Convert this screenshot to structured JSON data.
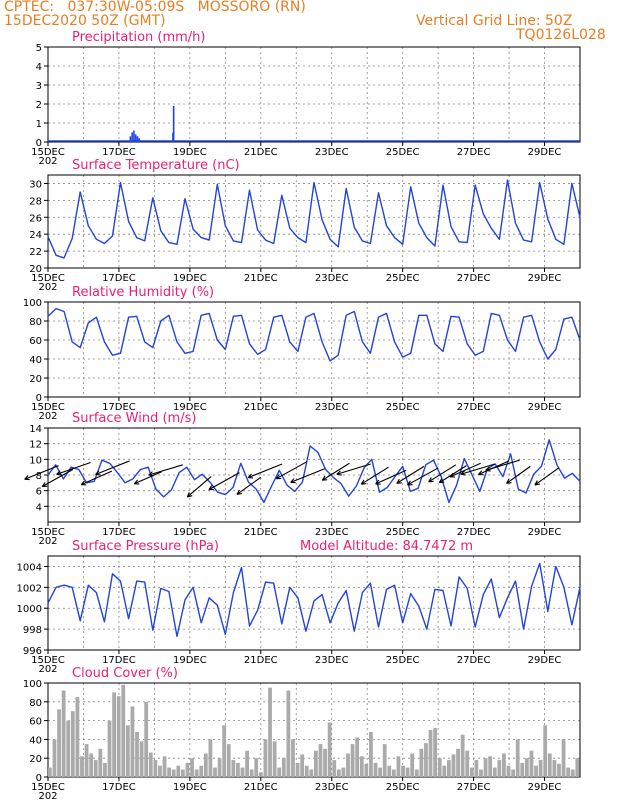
{
  "header": {
    "left_line1": "CPTEC:   037:30W-05:09S   MOSSORO (RN)",
    "left_line2": "15DEC2020 50Z (GMT)",
    "right_line1": "Vertical Grid Line: 50Z",
    "right_line2": "TQ0126L028"
  },
  "x_labels": [
    "15DEC",
    "17DEC",
    "19DEC",
    "21DEC",
    "23DEC",
    "25DEC",
    "27DEC",
    "29DEC"
  ],
  "x_year_stub": "202",
  "colors": {
    "line": "#2244dd",
    "title": "#e8207a",
    "header": "#e67e22",
    "cloud": "#aaaaaa",
    "wind": "#000000"
  },
  "chart_data": [
    {
      "type": "bar",
      "title": "Precipitation (mm/h)",
      "ylim": [
        0,
        5
      ],
      "yticks": [
        "0",
        "1",
        "2",
        "3",
        "4",
        "5"
      ],
      "x_days": [
        2.3,
        2.35,
        2.4,
        2.45,
        2.5,
        2.55,
        3.5,
        3.52
      ],
      "values": [
        0.3,
        0.5,
        0.6,
        0.4,
        0.3,
        0.2,
        0.5,
        1.9
      ]
    },
    {
      "type": "line",
      "title": "Surface Temperature (nC)",
      "ylim": [
        20,
        31
      ],
      "yticks": [
        "20",
        "22",
        "24",
        "26",
        "28",
        "30"
      ],
      "values": [
        23.7,
        21.5,
        21.2,
        23.5,
        29.0,
        25.0,
        23.4,
        22.9,
        23.8,
        30.1,
        25.5,
        23.6,
        23.2,
        28.3,
        24.4,
        23.0,
        22.8,
        28.2,
        24.6,
        23.6,
        23.3,
        29.9,
        25.0,
        23.2,
        23.0,
        29.2,
        24.5,
        23.3,
        22.9,
        28.6,
        24.7,
        23.6,
        23.0,
        30.1,
        25.7,
        23.4,
        22.5,
        29.4,
        24.8,
        23.2,
        22.9,
        28.9,
        25.0,
        23.6,
        22.8,
        29.6,
        25.3,
        23.6,
        22.6,
        29.8,
        24.9,
        23.1,
        23.0,
        29.8,
        26.4,
        24.7,
        23.4,
        30.4,
        25.3,
        23.3,
        23.1,
        30.1,
        25.8,
        23.4,
        22.8,
        30.0,
        26.0
      ]
    },
    {
      "type": "line",
      "title": "Relative Humidity (%)",
      "ylim": [
        0,
        100
      ],
      "yticks": [
        "0",
        "20",
        "40",
        "60",
        "80",
        "100"
      ],
      "values": [
        85,
        93,
        90,
        58,
        52,
        78,
        84,
        58,
        44,
        46,
        84,
        85,
        58,
        52,
        80,
        86,
        58,
        46,
        48,
        86,
        88,
        60,
        50,
        85,
        86,
        56,
        45,
        50,
        84,
        86,
        58,
        48,
        84,
        88,
        58,
        38,
        44,
        86,
        90,
        58,
        46,
        84,
        88,
        58,
        42,
        46,
        86,
        86,
        56,
        48,
        85,
        84,
        56,
        44,
        48,
        88,
        86,
        60,
        48,
        84,
        86,
        58,
        40,
        50,
        82,
        84,
        60
      ]
    },
    {
      "type": "line",
      "title": "Surface Wind (m/s)",
      "ylim": [
        2,
        14
      ],
      "yticks": [
        "4",
        "6",
        "8",
        "10",
        "12",
        "14"
      ],
      "values": [
        8.0,
        9.3,
        7.5,
        9.0,
        8.7,
        7.0,
        7.2,
        9.9,
        9.5,
        8.3,
        7.0,
        7.5,
        8.7,
        9.0,
        6.2,
        5.2,
        6.1,
        8.3,
        9.0,
        7.4,
        8.1,
        7.1,
        5.8,
        5.5,
        6.4,
        9.5,
        7.1,
        6.2,
        4.5,
        6.6,
        8.6,
        6.7,
        5.9,
        7.1,
        11.7,
        10.9,
        8.7,
        7.7,
        6.9,
        5.3,
        6.6,
        8.9,
        10.0,
        5.8,
        6.4,
        7.8,
        9.1,
        5.9,
        6.3,
        9.3,
        9.9,
        7.8,
        4.5,
        6.7,
        10.1,
        8.0,
        5.9,
        8.8,
        9.4,
        7.8,
        10.7,
        6.2,
        5.7,
        8.1,
        9.1,
        12.5,
        9.3,
        7.6,
        8.2,
        7.2
      ],
      "arrow_days": [
        0.3,
        0.7,
        1.2,
        1.8,
        2.3,
        3.2,
        3.8,
        4.6,
        5.4,
        6.0,
        6.6,
        7.3,
        7.8,
        8.5,
        9.1,
        9.6,
        10.1,
        10.6,
        11.0,
        11.5,
        11.8,
        12.2,
        12.6,
        13.0,
        13.3,
        13.6,
        14.4
      ],
      "arrow_speeds": [
        9.2,
        8.7,
        9.6,
        8.5,
        9.8,
        8.4,
        9.3,
        7.8,
        8.3,
        7.7,
        9.4,
        9.7,
        8.8,
        9.5,
        9.4,
        9.0,
        8.6,
        9.1,
        8.9,
        9.3,
        9.2,
        9.5,
        9.4,
        9.8,
        9.9,
        9.1,
        8.9
      ],
      "arrow_vec": [
        [
          -1.0,
          0.4
        ],
        [
          -0.9,
          0.5
        ],
        [
          -1.0,
          0.35
        ],
        [
          -0.9,
          0.4
        ],
        [
          -1.0,
          0.4
        ],
        [
          -0.8,
          0.35
        ],
        [
          -1.0,
          0.3
        ],
        [
          -0.7,
          0.6
        ],
        [
          -0.9,
          0.5
        ],
        [
          -0.7,
          0.5
        ],
        [
          -1.0,
          0.4
        ],
        [
          -0.9,
          0.5
        ],
        [
          -1.0,
          0.4
        ],
        [
          -0.8,
          0.5
        ],
        [
          -1.0,
          0.3
        ],
        [
          -0.8,
          0.5
        ],
        [
          -0.9,
          0.4
        ],
        [
          -0.8,
          0.5
        ],
        [
          -0.9,
          0.5
        ],
        [
          -0.8,
          0.5
        ],
        [
          -0.8,
          0.5
        ],
        [
          -0.9,
          0.4
        ],
        [
          -1.0,
          0.3
        ],
        [
          -0.9,
          0.4
        ],
        [
          -1.0,
          0.3
        ],
        [
          -0.7,
          0.5
        ],
        [
          -0.7,
          0.5
        ]
      ]
    },
    {
      "type": "line",
      "title": "Surface Pressure (hPa)",
      "subtitle": "Model Altitude: 84.7472 m",
      "ylim": [
        996,
        1005
      ],
      "yticks": [
        "996",
        "998",
        "1000",
        "1002",
        "1004"
      ],
      "values": [
        1000.5,
        1002.0,
        1002.2,
        1002.0,
        998.8,
        1002.2,
        1001.5,
        998.7,
        1003.3,
        1002.6,
        999.0,
        1002.6,
        1002.5,
        997.9,
        1001.9,
        1001.6,
        997.3,
        1000.8,
        1002.0,
        998.6,
        1001.0,
        1000.3,
        997.5,
        1001.5,
        1003.9,
        998.3,
        999.8,
        1002.5,
        1002.4,
        998.5,
        1002.0,
        1001.0,
        997.8,
        1000.7,
        1001.3,
        998.6,
        1000.5,
        1001.7,
        997.8,
        1001.5,
        1002.4,
        998.2,
        1001.8,
        1002.2,
        998.6,
        1001.4,
        1000.2,
        998.0,
        1001.8,
        1001.7,
        998.3,
        1003.0,
        1001.9,
        998.2,
        1001.3,
        1002.8,
        999.1,
        1001.0,
        1002.6,
        998.0,
        1002.1,
        1004.3,
        999.7,
        1004.0,
        1002.0,
        998.4,
        1002.0
      ]
    },
    {
      "type": "bar",
      "title": "Cloud Cover (%)",
      "ylim": [
        0,
        100
      ],
      "yticks": [
        "0",
        "20",
        "40",
        "60",
        "80",
        "100"
      ],
      "values": [
        10,
        40,
        72,
        92,
        60,
        70,
        85,
        22,
        35,
        25,
        18,
        30,
        15,
        60,
        90,
        86,
        98,
        55,
        75,
        48,
        38,
        80,
        26,
        18,
        12,
        22,
        10,
        8,
        12,
        8,
        15,
        20,
        8,
        12,
        25,
        40,
        10,
        20,
        55,
        35,
        18,
        15,
        10,
        28,
        8,
        20,
        5,
        40,
        95,
        38,
        10,
        20,
        92,
        40,
        15,
        24,
        12,
        8,
        28,
        35,
        30,
        58,
        18,
        8,
        10,
        25,
        35,
        42,
        22,
        14,
        48,
        15,
        10,
        35,
        12,
        8,
        22,
        12,
        10,
        25,
        8,
        30,
        36,
        50,
        52,
        20,
        12,
        18,
        24,
        30,
        45,
        28,
        10,
        18,
        8,
        20,
        22,
        10,
        18,
        25,
        12,
        8,
        40,
        15,
        20,
        28,
        12,
        18,
        55,
        25,
        18,
        14,
        40,
        10,
        8,
        20
      ]
    }
  ]
}
